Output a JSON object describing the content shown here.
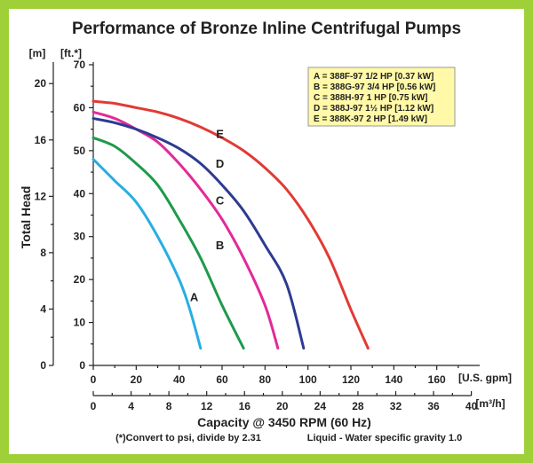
{
  "chart_data": {
    "type": "line",
    "title": "Performance of Bronze Inline Centrifugal Pumps",
    "ylabel": "Total Head",
    "xlabel": "Capacity @ 3450 RPM (60 Hz)",
    "x_unit_primary": "[U.S. gpm]",
    "x_unit_secondary": "[m³/h]",
    "y_unit_primary": "[ft.*]",
    "y_unit_secondary": "[m]",
    "xlim": [
      0,
      180
    ],
    "ylim": [
      0,
      70
    ],
    "x_ticks": [
      "0",
      "20",
      "40",
      "60",
      "80",
      "100",
      "120",
      "140",
      "160"
    ],
    "x_ticks_secondary": [
      "0",
      "4",
      "8",
      "12",
      "16",
      "20",
      "24",
      "28",
      "32",
      "36",
      "40"
    ],
    "y_ticks": [
      "0",
      "10",
      "20",
      "30",
      "40",
      "50",
      "60",
      "70"
    ],
    "y_ticks_secondary": [
      "0",
      "4",
      "8",
      "12",
      "16",
      "20"
    ],
    "grid": false,
    "legend_position": "top-right",
    "legend": [
      "A = 388F-97 1/2 HP [0.37 kW]",
      "B = 388G-97 3/4 HP [0.56 kW]",
      "C = 388H-97 1 HP [0.75 kW]",
      "D = 388J-97 1½ HP [1.12 kW]",
      "E = 388K-97 2 HP [1.49 kW]"
    ],
    "footnote_1": "(*)Convert to psi, divide by 2.31",
    "footnote_2": "Liquid - Water specific gravity 1.0",
    "series": [
      {
        "name": "A",
        "color": "#27aee3",
        "points": [
          [
            0,
            48
          ],
          [
            10,
            43
          ],
          [
            20,
            38
          ],
          [
            30,
            30
          ],
          [
            40,
            20
          ],
          [
            45,
            13
          ],
          [
            50,
            4
          ]
        ]
      },
      {
        "name": "B",
        "color": "#1e9a4c",
        "points": [
          [
            0,
            53
          ],
          [
            10,
            51
          ],
          [
            20,
            47
          ],
          [
            30,
            42
          ],
          [
            40,
            34
          ],
          [
            50,
            25
          ],
          [
            60,
            14
          ],
          [
            70,
            4
          ]
        ]
      },
      {
        "name": "C",
        "color": "#e3299a",
        "points": [
          [
            0,
            59
          ],
          [
            10,
            57.5
          ],
          [
            20,
            55
          ],
          [
            30,
            52
          ],
          [
            40,
            47
          ],
          [
            50,
            41
          ],
          [
            60,
            34
          ],
          [
            70,
            25
          ],
          [
            80,
            14
          ],
          [
            86,
            4
          ]
        ]
      },
      {
        "name": "D",
        "color": "#2d3b91",
        "points": [
          [
            0,
            57.5
          ],
          [
            10,
            56.5
          ],
          [
            20,
            55
          ],
          [
            30,
            53
          ],
          [
            40,
            50.5
          ],
          [
            50,
            47
          ],
          [
            60,
            42
          ],
          [
            70,
            36
          ],
          [
            80,
            28
          ],
          [
            90,
            19
          ],
          [
            98,
            4
          ]
        ]
      },
      {
        "name": "E",
        "color": "#e23a35",
        "points": [
          [
            0,
            61.5
          ],
          [
            10,
            61
          ],
          [
            20,
            60
          ],
          [
            30,
            59
          ],
          [
            40,
            57.5
          ],
          [
            50,
            55.5
          ],
          [
            60,
            53
          ],
          [
            70,
            50
          ],
          [
            80,
            46
          ],
          [
            90,
            41
          ],
          [
            100,
            34
          ],
          [
            110,
            25
          ],
          [
            120,
            13
          ],
          [
            128,
            4
          ]
        ]
      }
    ],
    "curve_labels": [
      {
        "text": "A",
        "x": 47,
        "y": 15
      },
      {
        "text": "B",
        "x": 59,
        "y": 27
      },
      {
        "text": "C",
        "x": 59,
        "y": 37.5
      },
      {
        "text": "D",
        "x": 59,
        "y": 46
      },
      {
        "text": "E",
        "x": 59,
        "y": 53
      }
    ]
  }
}
